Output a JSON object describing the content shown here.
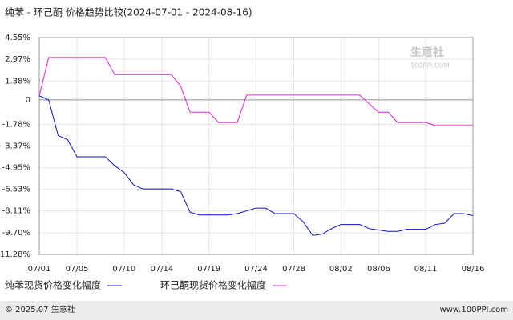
{
  "chart_data": {
    "type": "line",
    "title": "纯苯 - 环己酮 价格趋势比较(2024-07-01 - 2024-08-16)",
    "watermark": {
      "name": "生意社",
      "site": "100PPI.COM"
    },
    "footer": {
      "left": "© 2025.07 生意社",
      "right": "www.100PPI.com"
    },
    "categories": [
      "07/01",
      null,
      null,
      null,
      "07/05",
      null,
      null,
      null,
      null,
      "07/10",
      null,
      null,
      null,
      "07/14",
      null,
      null,
      null,
      null,
      "07/19",
      null,
      null,
      null,
      null,
      "07/24",
      null,
      null,
      null,
      "07/28",
      null,
      null,
      null,
      null,
      "08/02",
      null,
      null,
      null,
      "08/06",
      null,
      null,
      null,
      null,
      "08/11",
      null,
      null,
      null,
      null,
      "08/16"
    ],
    "series": [
      {
        "name": "纯苯现货价格变化幅度",
        "color": "#1010c8",
        "values": [
          0.3,
          0,
          -2.6,
          -2.9,
          -4.15,
          -4.15,
          -4.15,
          -4.15,
          -4.8,
          -5.3,
          -6.2,
          -6.5,
          -6.5,
          -6.5,
          -6.5,
          -6.7,
          -8.2,
          -8.4,
          -8.4,
          -8.4,
          -8.4,
          -8.3,
          -8.1,
          -7.9,
          -7.9,
          -8.3,
          -8.3,
          -8.3,
          -8.9,
          -9.9,
          -9.8,
          -9.4,
          -9.1,
          -9.1,
          -9.1,
          -9.4,
          -9.5,
          -9.6,
          -9.6,
          -9.45,
          -9.45,
          -9.45,
          -9.1,
          -9.0,
          -8.3,
          -8.3,
          -8.45
        ]
      },
      {
        "name": "环己酮现货价格变化幅度",
        "color": "#e020e0",
        "values": [
          0.3,
          3.1,
          3.1,
          3.1,
          3.1,
          3.1,
          3.1,
          3.1,
          1.85,
          1.85,
          1.85,
          1.85,
          1.85,
          1.85,
          1.85,
          1.0,
          -0.9,
          -0.9,
          -0.9,
          -1.65,
          -1.65,
          -1.65,
          0.35,
          0.35,
          0.35,
          0.35,
          0.35,
          0.35,
          0.35,
          0.35,
          0.35,
          0.35,
          0.35,
          0.35,
          0.35,
          -0.3,
          -0.9,
          -0.9,
          -1.65,
          -1.65,
          -1.65,
          -1.65,
          -1.87,
          -1.87,
          -1.87,
          -1.87,
          -1.87
        ]
      }
    ],
    "ylim": [
      -11.28,
      4.55
    ],
    "yticks": [
      {
        "value": 4.55,
        "label": "4.55%"
      },
      {
        "value": 2.97,
        "label": "2.97%"
      },
      {
        "value": 1.38,
        "label": "1.38%"
      },
      0,
      {
        "value": -1.78,
        "label": "-1.78%"
      },
      {
        "value": -3.37,
        "label": "-3.37%"
      },
      {
        "value": -4.95,
        "label": "-4.95%"
      },
      {
        "value": -6.53,
        "label": "-6.53%"
      },
      {
        "value": -8.11,
        "label": "-8.11%"
      },
      {
        "value": -9.7,
        "label": "-9.70%"
      },
      {
        "value": -11.28,
        "label": "-11.28%"
      }
    ],
    "grid": true
  }
}
